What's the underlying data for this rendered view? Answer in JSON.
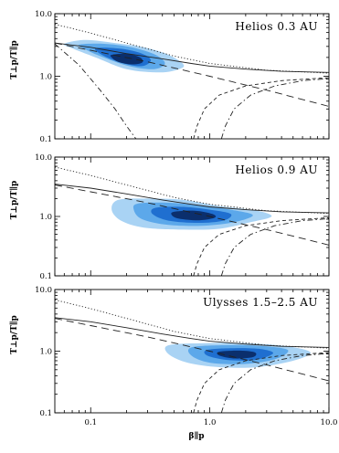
{
  "chart_data": [
    {
      "type": "heatmap",
      "title": "Helios 0.3 AU",
      "ylabel": "T⊥p/T∥p",
      "xlabel": "",
      "xscale": "log",
      "yscale": "log",
      "xlim": [
        0.05,
        10.0
      ],
      "ylim": [
        0.1,
        10.0
      ],
      "xticks": [
        "0.1",
        "1.0",
        "10.0"
      ],
      "yticks": [
        "0.1",
        "1.0",
        "10.0"
      ],
      "density_levels": [
        {
          "level": 1,
          "color": "#a9d3f4",
          "contour": [
            [
              0.06,
              3.3
            ],
            [
              0.09,
              3.8
            ],
            [
              0.16,
              3.4
            ],
            [
              0.28,
              2.9
            ],
            [
              0.45,
              2.2
            ],
            [
              0.6,
              1.55
            ],
            [
              0.55,
              1.3
            ],
            [
              0.38,
              1.15
            ],
            [
              0.2,
              1.3
            ],
            [
              0.11,
              2.0
            ],
            [
              0.07,
              2.8
            ]
          ]
        },
        {
          "level": 2,
          "color": "#5ca8ea",
          "contour": [
            [
              0.08,
              3.2
            ],
            [
              0.13,
              3.3
            ],
            [
              0.22,
              2.9
            ],
            [
              0.35,
              2.2
            ],
            [
              0.42,
              1.6
            ],
            [
              0.34,
              1.3
            ],
            [
              0.21,
              1.45
            ],
            [
              0.12,
              2.1
            ],
            [
              0.09,
              2.7
            ]
          ]
        },
        {
          "level": 3,
          "color": "#1f6fd0",
          "contour": [
            [
              0.11,
              2.8
            ],
            [
              0.18,
              2.75
            ],
            [
              0.27,
              2.3
            ],
            [
              0.32,
              1.8
            ],
            [
              0.27,
              1.45
            ],
            [
              0.19,
              1.6
            ],
            [
              0.13,
              2.1
            ]
          ]
        },
        {
          "level": 4,
          "color": "#0b2f6d",
          "contour": [
            [
              0.15,
              2.2
            ],
            [
              0.2,
              2.3
            ],
            [
              0.26,
              2.0
            ],
            [
              0.27,
              1.65
            ],
            [
              0.22,
              1.55
            ],
            [
              0.17,
              1.7
            ],
            [
              0.15,
              2.0
            ]
          ]
        }
      ],
      "curves": [
        {
          "style": "solid",
          "points": [
            [
              0.05,
              3.4
            ],
            [
              0.1,
              2.9
            ],
            [
              0.2,
              2.3
            ],
            [
              0.4,
              1.9
            ],
            [
              0.7,
              1.6
            ],
            [
              1.0,
              1.45
            ],
            [
              2.0,
              1.3
            ],
            [
              4.0,
              1.2
            ],
            [
              10.0,
              1.15
            ]
          ]
        },
        {
          "style": "dotted",
          "points": [
            [
              0.05,
              6.8
            ],
            [
              0.1,
              4.9
            ],
            [
              0.2,
              3.4
            ],
            [
              0.5,
              2.1
            ],
            [
              1.0,
              1.6
            ],
            [
              3.0,
              1.25
            ],
            [
              10.0,
              1.12
            ]
          ]
        },
        {
          "style": "long-dash",
          "points": [
            [
              0.05,
              3.4
            ],
            [
              0.1,
              2.6
            ],
            [
              0.3,
              1.7
            ],
            [
              1.0,
              1.0
            ],
            [
              3.0,
              0.6
            ],
            [
              10.0,
              0.33
            ]
          ]
        },
        {
          "style": "dash-dot",
          "points": [
            [
              0.05,
              3.3
            ],
            [
              0.08,
              1.5
            ],
            [
              0.12,
              0.6
            ],
            [
              0.16,
              0.3
            ],
            [
              0.2,
              0.16
            ],
            [
              0.24,
              0.1
            ]
          ]
        },
        {
          "style": "short-dash",
          "points": [
            [
              0.73,
              0.1
            ],
            [
              0.78,
              0.16
            ],
            [
              0.9,
              0.3
            ],
            [
              1.2,
              0.5
            ],
            [
              2.0,
              0.7
            ],
            [
              4.0,
              0.85
            ],
            [
              10.0,
              0.95
            ]
          ]
        },
        {
          "style": "dash-dot",
          "points": [
            [
              1.25,
              0.1
            ],
            [
              1.35,
              0.16
            ],
            [
              1.6,
              0.3
            ],
            [
              2.2,
              0.5
            ],
            [
              3.5,
              0.7
            ],
            [
              6.0,
              0.85
            ],
            [
              10.0,
              0.92
            ]
          ]
        }
      ]
    },
    {
      "type": "heatmap",
      "title": "Helios 0.9 AU",
      "ylabel": "T⊥p/T∥p",
      "xlabel": "",
      "xscale": "log",
      "yscale": "log",
      "xlim": [
        0.05,
        10.0
      ],
      "ylim": [
        0.1,
        10.0
      ],
      "xticks": [
        "0.1",
        "1.0",
        "10.0"
      ],
      "yticks": [
        "0.1",
        "1.0",
        "10.0"
      ],
      "density_levels": [
        {
          "level": 1,
          "color": "#a9d3f4",
          "contour": [
            [
              0.17,
              1.9
            ],
            [
              0.3,
              2.0
            ],
            [
              0.6,
              1.9
            ],
            [
              1.2,
              1.5
            ],
            [
              2.5,
              1.25
            ],
            [
              3.3,
              1.0
            ],
            [
              2.2,
              0.8
            ],
            [
              1.2,
              0.62
            ],
            [
              0.6,
              0.6
            ],
            [
              0.28,
              0.65
            ],
            [
              0.18,
              0.85
            ],
            [
              0.15,
              1.3
            ]
          ]
        },
        {
          "level": 2,
          "color": "#5ca8ea",
          "contour": [
            [
              0.25,
              1.65
            ],
            [
              0.45,
              1.7
            ],
            [
              0.8,
              1.55
            ],
            [
              1.5,
              1.3
            ],
            [
              2.3,
              1.05
            ],
            [
              1.6,
              0.8
            ],
            [
              0.9,
              0.7
            ],
            [
              0.45,
              0.72
            ],
            [
              0.27,
              0.9
            ],
            [
              0.23,
              1.3
            ]
          ]
        },
        {
          "level": 3,
          "color": "#1f6fd0",
          "contour": [
            [
              0.35,
              1.4
            ],
            [
              0.6,
              1.45
            ],
            [
              1.0,
              1.3
            ],
            [
              1.5,
              1.1
            ],
            [
              1.3,
              0.85
            ],
            [
              0.8,
              0.78
            ],
            [
              0.45,
              0.85
            ],
            [
              0.33,
              1.1
            ]
          ]
        },
        {
          "level": 4,
          "color": "#0b2f6d",
          "contour": [
            [
              0.5,
              1.2
            ],
            [
              0.75,
              1.25
            ],
            [
              1.05,
              1.1
            ],
            [
              1.1,
              0.95
            ],
            [
              0.8,
              0.86
            ],
            [
              0.55,
              0.92
            ],
            [
              0.48,
              1.05
            ]
          ]
        }
      ],
      "curves": [
        {
          "style": "solid",
          "points": [
            [
              0.05,
              3.5
            ],
            [
              0.1,
              3.0
            ],
            [
              0.2,
              2.4
            ],
            [
              0.4,
              1.9
            ],
            [
              0.7,
              1.6
            ],
            [
              1.0,
              1.45
            ],
            [
              2.0,
              1.3
            ],
            [
              4.0,
              1.2
            ],
            [
              10.0,
              1.15
            ]
          ]
        },
        {
          "style": "dotted",
          "points": [
            [
              0.05,
              6.8
            ],
            [
              0.1,
              4.9
            ],
            [
              0.2,
              3.4
            ],
            [
              0.5,
              2.1
            ],
            [
              1.0,
              1.6
            ],
            [
              3.0,
              1.25
            ],
            [
              10.0,
              1.12
            ]
          ]
        },
        {
          "style": "long-dash",
          "points": [
            [
              0.05,
              3.4
            ],
            [
              0.1,
              2.6
            ],
            [
              0.3,
              1.7
            ],
            [
              1.0,
              1.0
            ],
            [
              3.0,
              0.6
            ],
            [
              10.0,
              0.33
            ]
          ]
        },
        {
          "style": "short-dash",
          "points": [
            [
              0.73,
              0.1
            ],
            [
              0.78,
              0.16
            ],
            [
              0.9,
              0.3
            ],
            [
              1.2,
              0.5
            ],
            [
              2.0,
              0.7
            ],
            [
              4.0,
              0.85
            ],
            [
              10.0,
              0.95
            ]
          ]
        },
        {
          "style": "dash-dot",
          "points": [
            [
              1.25,
              0.1
            ],
            [
              1.35,
              0.16
            ],
            [
              1.6,
              0.3
            ],
            [
              2.2,
              0.5
            ],
            [
              3.5,
              0.7
            ],
            [
              6.0,
              0.85
            ],
            [
              10.0,
              0.92
            ]
          ]
        }
      ]
    },
    {
      "type": "heatmap",
      "title": "Ulysses 1.5–2.5 AU",
      "ylabel": "T⊥p/T∥p",
      "xlabel": "β∥p",
      "xscale": "log",
      "yscale": "log",
      "xlim": [
        0.05,
        10.0
      ],
      "ylim": [
        0.1,
        10.0
      ],
      "xticks": [
        "0.1",
        "1.0",
        "10.0"
      ],
      "yticks": [
        "0.1",
        "1.0",
        "10.0"
      ],
      "density_levels": [
        {
          "level": 1,
          "color": "#a9d3f4",
          "contour": [
            [
              0.45,
              1.25
            ],
            [
              0.9,
              1.35
            ],
            [
              2.0,
              1.35
            ],
            [
              4.5,
              1.2
            ],
            [
              7.0,
              0.95
            ],
            [
              5.0,
              0.7
            ],
            [
              2.5,
              0.55
            ],
            [
              1.2,
              0.55
            ],
            [
              0.65,
              0.65
            ],
            [
              0.45,
              0.9
            ]
          ]
        },
        {
          "level": 2,
          "color": "#5ca8ea",
          "contour": [
            [
              0.7,
              1.15
            ],
            [
              1.3,
              1.25
            ],
            [
              2.6,
              1.22
            ],
            [
              4.5,
              1.05
            ],
            [
              3.6,
              0.75
            ],
            [
              2.0,
              0.62
            ],
            [
              1.0,
              0.65
            ],
            [
              0.7,
              0.85
            ]
          ]
        },
        {
          "level": 3,
          "color": "#1f6fd0",
          "contour": [
            [
              0.95,
              1.05
            ],
            [
              1.6,
              1.12
            ],
            [
              2.7,
              1.08
            ],
            [
              3.4,
              0.92
            ],
            [
              2.4,
              0.72
            ],
            [
              1.4,
              0.72
            ],
            [
              0.95,
              0.85
            ]
          ]
        },
        {
          "level": 4,
          "color": "#0b2f6d",
          "contour": [
            [
              1.2,
              0.98
            ],
            [
              1.8,
              1.02
            ],
            [
              2.4,
              0.95
            ],
            [
              2.3,
              0.8
            ],
            [
              1.6,
              0.76
            ],
            [
              1.2,
              0.85
            ]
          ]
        }
      ],
      "curves": [
        {
          "style": "solid",
          "points": [
            [
              0.05,
              3.5
            ],
            [
              0.1,
              3.0
            ],
            [
              0.2,
              2.4
            ],
            [
              0.4,
              1.9
            ],
            [
              0.7,
              1.6
            ],
            [
              1.0,
              1.45
            ],
            [
              2.0,
              1.3
            ],
            [
              4.0,
              1.2
            ],
            [
              10.0,
              1.15
            ]
          ]
        },
        {
          "style": "dotted",
          "points": [
            [
              0.05,
              6.8
            ],
            [
              0.1,
              4.9
            ],
            [
              0.2,
              3.4
            ],
            [
              0.5,
              2.1
            ],
            [
              1.0,
              1.6
            ],
            [
              3.0,
              1.25
            ],
            [
              10.0,
              1.12
            ]
          ]
        },
        {
          "style": "long-dash",
          "points": [
            [
              0.05,
              3.4
            ],
            [
              0.1,
              2.6
            ],
            [
              0.3,
              1.7
            ],
            [
              1.0,
              1.0
            ],
            [
              3.0,
              0.6
            ],
            [
              10.0,
              0.33
            ]
          ]
        },
        {
          "style": "short-dash",
          "points": [
            [
              0.73,
              0.1
            ],
            [
              0.78,
              0.16
            ],
            [
              0.9,
              0.3
            ],
            [
              1.2,
              0.5
            ],
            [
              2.0,
              0.7
            ],
            [
              4.0,
              0.85
            ],
            [
              10.0,
              0.95
            ]
          ]
        },
        {
          "style": "dash-dot",
          "points": [
            [
              1.25,
              0.1
            ],
            [
              1.35,
              0.16
            ],
            [
              1.6,
              0.3
            ],
            [
              2.2,
              0.5
            ],
            [
              3.5,
              0.7
            ],
            [
              6.0,
              0.85
            ],
            [
              10.0,
              0.92
            ]
          ]
        }
      ]
    }
  ]
}
